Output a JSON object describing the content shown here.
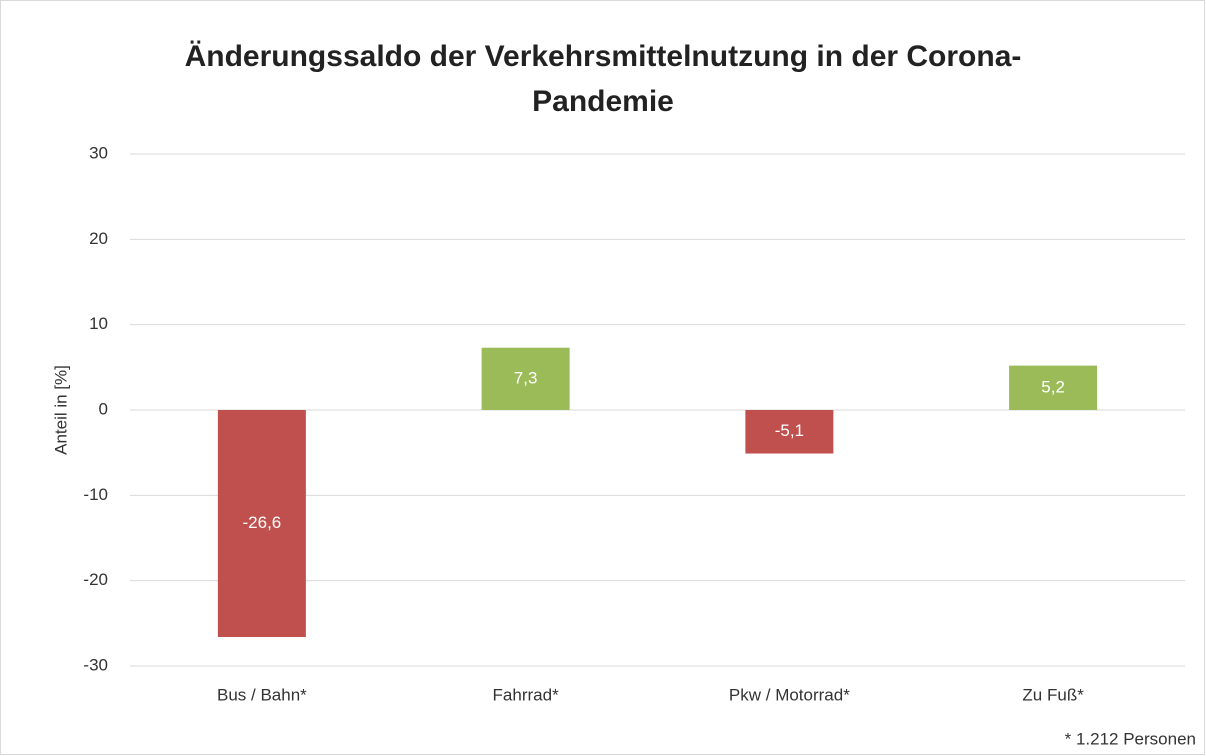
{
  "chart_data": {
    "type": "bar",
    "title": [
      "Änderungssaldo der Verkehrsmittelnutzung in der Corona-",
      "Pandemie"
    ],
    "y_label": "Anteil in [%]",
    "categories": [
      "Bus / Bahn*",
      "Fahrrad*",
      "Pkw / Motorrad*",
      "Zu Fuß*"
    ],
    "values": [
      -26.6,
      7.3,
      -5.1,
      5.2
    ],
    "value_labels": [
      "-26,6",
      "7,3",
      "-5,1",
      "5,2"
    ],
    "colors": [
      "#c0504d",
      "#9bbb59",
      "#c0504d",
      "#9bbb59"
    ],
    "ylim": [
      -30,
      30
    ],
    "yticks": [
      -30,
      -20,
      -10,
      0,
      10,
      20,
      30
    ],
    "grid": true,
    "footnote": "* 1.212 Personen"
  }
}
